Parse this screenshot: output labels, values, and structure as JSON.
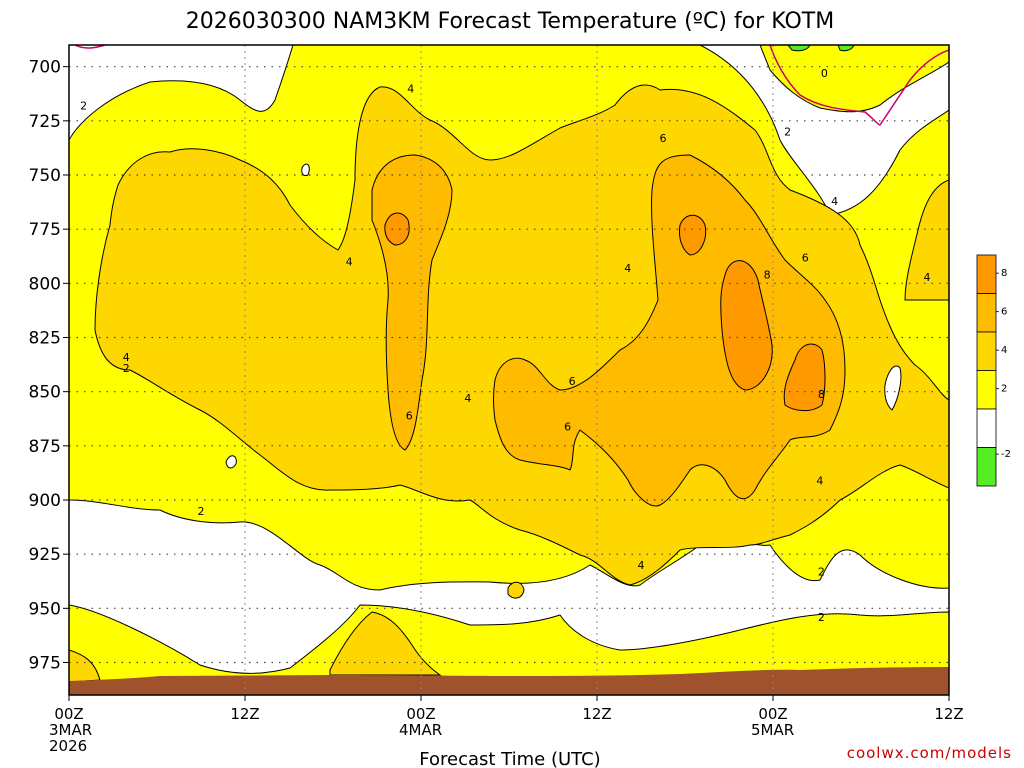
{
  "title": "2026030300 NAM3KM Forecast Temperature (ºC) for KOTM",
  "credit": "coolwx.com/models",
  "chart_data": {
    "type": "contour",
    "title": "2026030300 NAM3KM Forecast Temperature (ºC) for KOTM",
    "xlabel": "Forecast Time (UTC)",
    "ylabel": "",
    "x_range_hours": [
      0,
      60
    ],
    "y_range_hPa": [
      990,
      690
    ],
    "y_ticks": [
      700,
      725,
      750,
      775,
      800,
      825,
      850,
      875,
      900,
      925,
      950,
      975
    ],
    "x_ticks": [
      {
        "hour": 0,
        "lines": [
          "00Z",
          "3MAR",
          "2026"
        ]
      },
      {
        "hour": 12,
        "lines": [
          "12Z"
        ]
      },
      {
        "hour": 24,
        "lines": [
          "00Z",
          "4MAR"
        ]
      },
      {
        "hour": 36,
        "lines": [
          "12Z"
        ]
      },
      {
        "hour": 48,
        "lines": [
          "00Z",
          "5MAR"
        ]
      },
      {
        "hour": 60,
        "lines": [
          "12Z"
        ]
      }
    ],
    "contour_levels": [
      -2,
      0,
      2,
      4,
      6,
      8
    ],
    "colorbar": {
      "labels": [
        "8",
        "6",
        "4",
        "2",
        "-2"
      ],
      "bands": [
        {
          "label": "8",
          "color": "#ff9900"
        },
        {
          "label": "6",
          "color": "#ffbb00"
        },
        {
          "label": "4",
          "color": "#ffd700"
        },
        {
          "label": "2",
          "color": "#ffff00"
        },
        {
          "label": "",
          "color": "#ffffff"
        },
        {
          "label": "-2",
          "color": "#55ee22"
        }
      ]
    },
    "contour_labels": [
      {
        "text": "2",
        "hour": 1.0,
        "p": 718
      },
      {
        "text": "4",
        "hour": 23.3,
        "p": 710
      },
      {
        "text": "4",
        "hour": 19.1,
        "p": 790
      },
      {
        "text": "4",
        "hour": 3.9,
        "p": 834
      },
      {
        "text": "2",
        "hour": 3.9,
        "p": 839
      },
      {
        "text": "2",
        "hour": 9.0,
        "p": 905
      },
      {
        "text": "6",
        "hour": 23.2,
        "p": 861
      },
      {
        "text": "4",
        "hour": 27.2,
        "p": 853
      },
      {
        "text": "6",
        "hour": 34.3,
        "p": 845
      },
      {
        "text": "6",
        "hour": 34.0,
        "p": 866
      },
      {
        "text": "4",
        "hour": 38.1,
        "p": 793
      },
      {
        "text": "6",
        "hour": 40.5,
        "p": 733
      },
      {
        "text": "2",
        "hour": 49.0,
        "p": 730
      },
      {
        "text": "0",
        "hour": 51.5,
        "p": 703
      },
      {
        "text": "4",
        "hour": 52.2,
        "p": 762
      },
      {
        "text": "6",
        "hour": 50.2,
        "p": 788
      },
      {
        "text": "8",
        "hour": 47.6,
        "p": 796
      },
      {
        "text": "8",
        "hour": 51.3,
        "p": 851
      },
      {
        "text": "4",
        "hour": 51.2,
        "p": 891
      },
      {
        "text": "4",
        "hour": 58.5,
        "p": 797
      },
      {
        "text": "4",
        "hour": 39.0,
        "p": 930
      },
      {
        "text": "2",
        "hour": 51.3,
        "p": 933
      },
      {
        "text": "2",
        "hour": 51.3,
        "p": 954
      }
    ]
  }
}
